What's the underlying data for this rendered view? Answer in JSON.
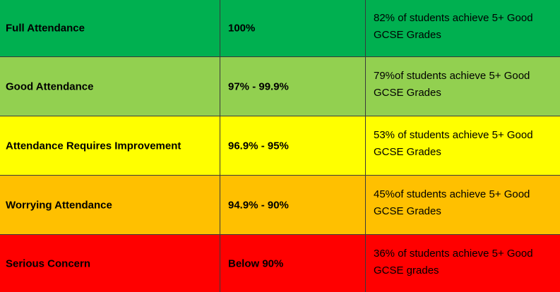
{
  "table": {
    "rows": [
      {
        "band": "Full Attendance",
        "range": "100%",
        "outcome_line1": "82% of students achieve 5+ Good",
        "outcome_line2": "GCSE Grades",
        "color": "#00b050"
      },
      {
        "band": "Good Attendance",
        "range": "97% - 99.9%",
        "outcome_line1": "79%of students achieve 5+ Good",
        "outcome_line2": "GCSE Grades",
        "color": "#92d050"
      },
      {
        "band": "Attendance Requires Improvement",
        "range": "96.9% - 95%",
        "outcome_line1": "53% of students achieve 5+ Good",
        "outcome_line2": "GCSE Grades",
        "color": "#ffff00"
      },
      {
        "band": "Worrying Attendance",
        "range": "94.9% - 90%",
        "outcome_line1": "45%of students achieve 5+ Good",
        "outcome_line2": "GCSE Grades",
        "color": "#ffc000"
      },
      {
        "band": "Serious Concern",
        "range": "Below 90%",
        "outcome_line1": "36% of students achieve 5+ Good",
        "outcome_line2": "GCSE grades",
        "color": "#ff0000"
      }
    ]
  }
}
